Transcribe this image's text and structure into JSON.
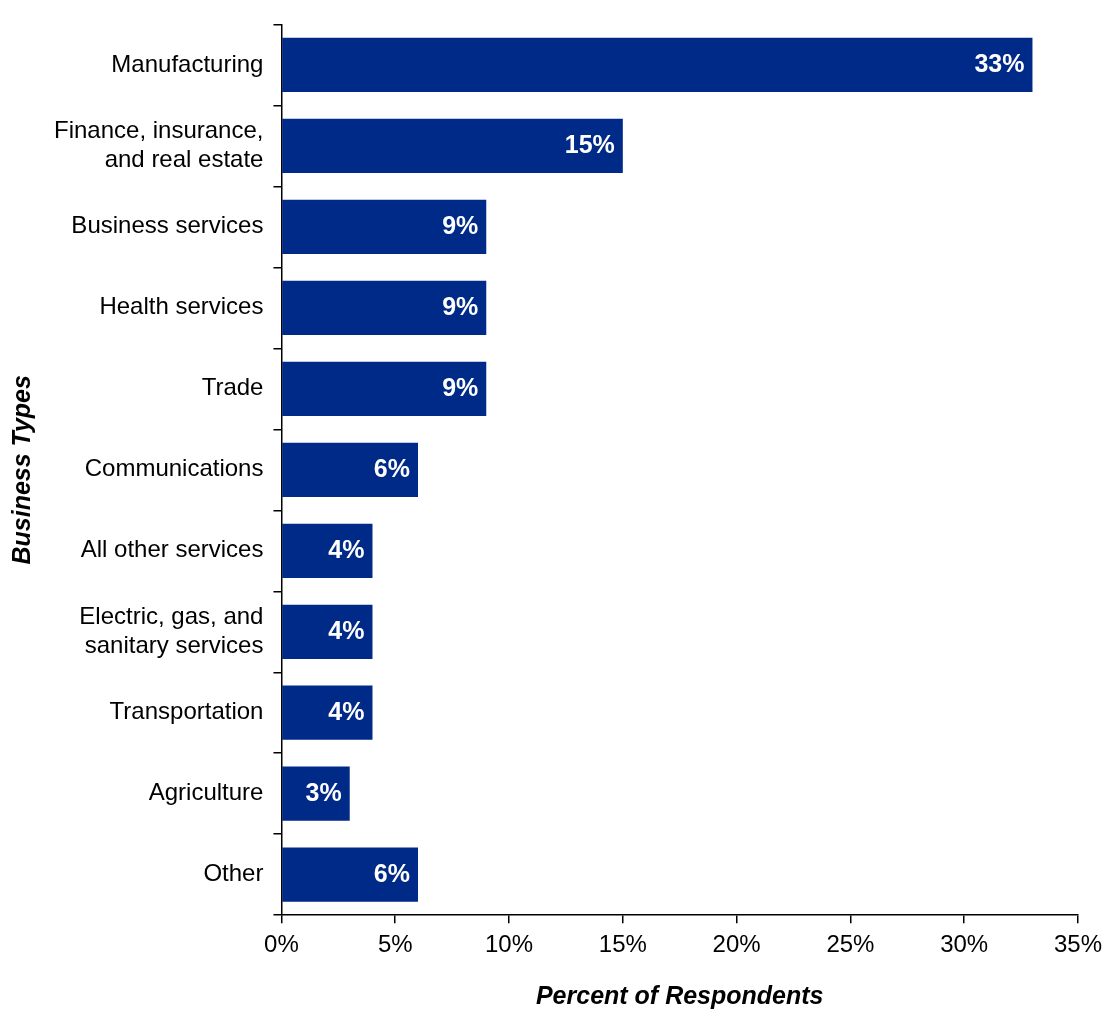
{
  "chart_data": {
    "type": "bar",
    "orientation": "horizontal",
    "xlabel": "Percent of Respondents",
    "ylabel": "Business Types",
    "categories": [
      "Manufacturing",
      "Finance, insurance, and real estate",
      "Business services",
      "Health services",
      "Trade",
      "Communications",
      "All other services",
      "Electric, gas, and sanitary services",
      "Transportation",
      "Agriculture",
      "Other"
    ],
    "values": [
      33,
      15,
      9,
      9,
      9,
      6,
      4,
      4,
      4,
      3,
      6
    ],
    "value_labels": [
      "33%",
      "15%",
      "9%",
      "9%",
      "9%",
      "6%",
      "4%",
      "4%",
      "4%",
      "3%",
      "6%"
    ],
    "color": "#002a88",
    "xlim": [
      0,
      35
    ],
    "xticks": [
      {
        "value": 0,
        "label": "0%"
      },
      {
        "value": 5,
        "label": "5%"
      },
      {
        "value": 10,
        "label": "10%"
      },
      {
        "value": 15,
        "label": "15%"
      },
      {
        "value": 20,
        "label": "20%"
      },
      {
        "value": 25,
        "label": "25%"
      },
      {
        "value": 30,
        "label": "30%"
      },
      {
        "value": 35,
        "label": "35%"
      }
    ],
    "grid": false,
    "legend": false
  }
}
